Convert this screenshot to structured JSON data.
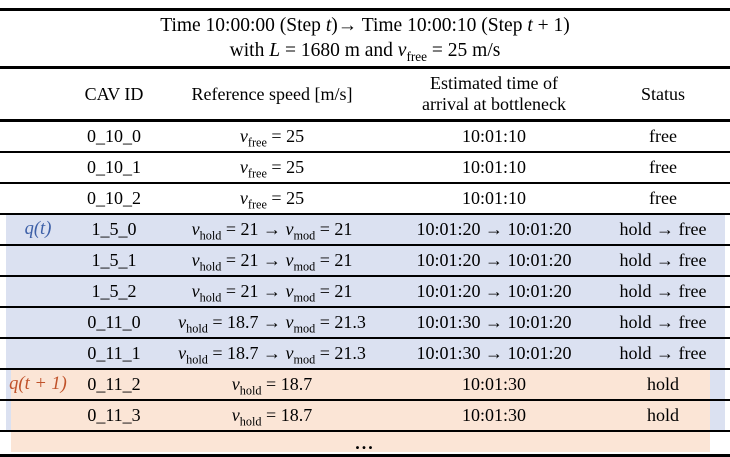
{
  "colors": {
    "highlight_blue": "#dbe1f1",
    "highlight_orange": "#fbe5d6",
    "label_blue": "#3c5fa7",
    "label_orange": "#c0522a",
    "line_black": "#000000"
  },
  "title": {
    "line1": [
      {
        "t": "Time 10:00:00 (Step "
      },
      {
        "t": "t",
        "s": "i"
      },
      {
        "t": ")→ Time 10:00:10 (Step "
      },
      {
        "t": "t",
        "s": "i"
      },
      {
        "t": " + 1)"
      }
    ],
    "line2": [
      {
        "t": "with "
      },
      {
        "t": "L",
        "s": "i"
      },
      {
        "t": " = 1680 m and "
      },
      {
        "t": "v",
        "s": "i"
      },
      {
        "t": "free",
        "s": "sub"
      },
      {
        "t": " = 25 m/s"
      }
    ]
  },
  "columns": {
    "cav_id": "CAV ID",
    "ref_speed": "Reference speed [m/s]",
    "eta_line1": "Estimated time of",
    "eta_line2": "arrival at bottleneck",
    "status": "Status"
  },
  "rows": [
    {
      "id": "0_10_0",
      "speed": [
        {
          "t": "v",
          "s": "i"
        },
        {
          "t": "free",
          "s": "sub"
        },
        {
          "t": " = 25"
        }
      ],
      "eta": "10:01:10",
      "status": "free"
    },
    {
      "id": "0_10_1",
      "speed": [
        {
          "t": "v",
          "s": "i"
        },
        {
          "t": "free",
          "s": "sub"
        },
        {
          "t": " = 25"
        }
      ],
      "eta": "10:01:10",
      "status": "free"
    },
    {
      "id": "0_10_2",
      "speed": [
        {
          "t": "v",
          "s": "i"
        },
        {
          "t": "free",
          "s": "sub"
        },
        {
          "t": " = 25"
        }
      ],
      "eta": "10:01:10",
      "status": "free"
    },
    {
      "label": [
        {
          "t": "q",
          "s": "i"
        },
        {
          "t": "("
        },
        {
          "t": "t",
          "s": "i"
        },
        {
          "t": ")"
        }
      ],
      "label_color": "blue",
      "id": "1_5_0",
      "speed": [
        {
          "t": "v",
          "s": "i"
        },
        {
          "t": "hold",
          "s": "sub"
        },
        {
          "t": " = 21 → "
        },
        {
          "t": "v",
          "s": "i"
        },
        {
          "t": "mod",
          "s": "sub"
        },
        {
          "t": " = 21"
        }
      ],
      "eta": "10:01:20 → 10:01:20",
      "status": "hold → free"
    },
    {
      "id": "1_5_1",
      "speed": [
        {
          "t": "v",
          "s": "i"
        },
        {
          "t": "hold",
          "s": "sub"
        },
        {
          "t": " = 21 → "
        },
        {
          "t": "v",
          "s": "i"
        },
        {
          "t": "mod",
          "s": "sub"
        },
        {
          "t": " = 21"
        }
      ],
      "eta": "10:01:20 → 10:01:20",
      "status": "hold → free"
    },
    {
      "id": "1_5_2",
      "speed": [
        {
          "t": "v",
          "s": "i"
        },
        {
          "t": "hold",
          "s": "sub"
        },
        {
          "t": " = 21 → "
        },
        {
          "t": "v",
          "s": "i"
        },
        {
          "t": "mod",
          "s": "sub"
        },
        {
          "t": " = 21"
        }
      ],
      "eta": "10:01:20 → 10:01:20",
      "status": "hold → free"
    },
    {
      "id": "0_11_0",
      "speed": [
        {
          "t": "v",
          "s": "i"
        },
        {
          "t": "hold",
          "s": "sub"
        },
        {
          "t": " = 18.7 → "
        },
        {
          "t": "v",
          "s": "i"
        },
        {
          "t": "mod",
          "s": "sub"
        },
        {
          "t": " = 21.3"
        }
      ],
      "eta": "10:01:30 → 10:01:20",
      "status": "hold → free"
    },
    {
      "id": "0_11_1",
      "speed": [
        {
          "t": "v",
          "s": "i"
        },
        {
          "t": "hold",
          "s": "sub"
        },
        {
          "t": " = 18.7 → "
        },
        {
          "t": "v",
          "s": "i"
        },
        {
          "t": "mod",
          "s": "sub"
        },
        {
          "t": " = 21.3"
        }
      ],
      "eta": "10:01:30 → 10:01:20",
      "status": "hold → free"
    },
    {
      "label": [
        {
          "t": "q",
          "s": "i"
        },
        {
          "t": "("
        },
        {
          "t": "t",
          "s": "i"
        },
        {
          "t": " + 1)"
        }
      ],
      "label_color": "orange",
      "id": "0_11_2",
      "speed": [
        {
          "t": "v",
          "s": "i"
        },
        {
          "t": "hold",
          "s": "sub"
        },
        {
          "t": " = 18.7"
        }
      ],
      "eta": "10:01:30",
      "status": "hold"
    },
    {
      "id": "0_11_3",
      "speed": [
        {
          "t": "v",
          "s": "i"
        },
        {
          "t": "hold",
          "s": "sub"
        },
        {
          "t": " = 18.7"
        }
      ],
      "eta": "10:01:30",
      "status": "hold"
    },
    {
      "dots": "..."
    }
  ]
}
